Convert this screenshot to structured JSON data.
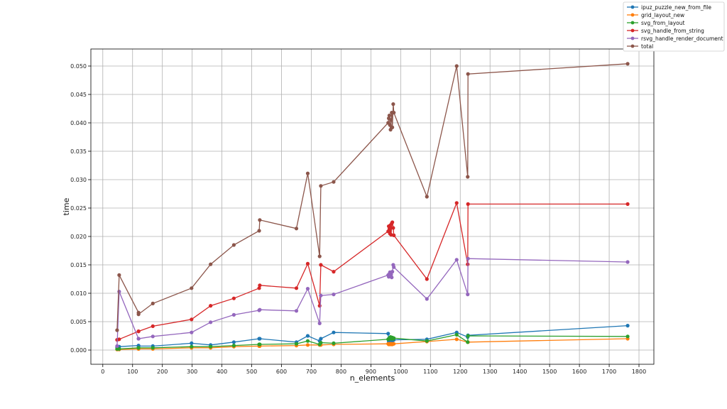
{
  "chart_data": {
    "type": "line",
    "xlabel": "n_elements",
    "ylabel": "time",
    "xlim": [
      -40,
      1850
    ],
    "ylim": [
      -0.0025,
      0.053
    ],
    "x_ticks": [
      0,
      100,
      200,
      300,
      400,
      500,
      600,
      700,
      800,
      900,
      1000,
      1100,
      1200,
      1300,
      1400,
      1500,
      1600,
      1700,
      1800
    ],
    "y_ticks": [
      0.0,
      0.005,
      0.01,
      0.015,
      0.02,
      0.025,
      0.03,
      0.035,
      0.04,
      0.045,
      0.05
    ],
    "y_tick_labels": [
      "0.000",
      "0.005",
      "0.010",
      "0.015",
      "0.020",
      "0.025",
      "0.030",
      "0.035",
      "0.040",
      "0.045",
      "0.050"
    ],
    "grid": true,
    "legend_position": "top-right (outside plot)",
    "x": [
      48,
      55,
      120,
      120,
      168,
      298,
      362,
      440,
      525,
      527,
      650,
      688,
      728,
      732,
      775,
      958,
      960,
      962,
      964,
      966,
      968,
      970,
      972,
      975,
      977,
      1088,
      1188,
      1225,
      1226,
      1762
    ],
    "series": [
      {
        "name": "ipuz_puzzle_new_from_file",
        "color": "#1f77b4",
        "values": [
          0.0005,
          0.0006,
          0.0008,
          0.0007,
          0.0007,
          0.0012,
          0.0009,
          0.0014,
          0.002,
          0.002,
          0.0014,
          0.0025,
          0.0016,
          0.002,
          0.0031,
          0.0029,
          0.0015,
          0.0016,
          0.0018,
          0.0019,
          0.0017,
          0.0018,
          0.0016,
          0.0018,
          0.0018,
          0.0019,
          0.0031,
          0.0023,
          0.0026,
          0.0043
        ]
      },
      {
        "name": "grid_layout_new",
        "color": "#ff7f0e",
        "values": [
          0.0001,
          0.0001,
          0.0002,
          0.0002,
          0.0002,
          0.0004,
          0.0004,
          0.0006,
          0.0007,
          0.0007,
          0.0008,
          0.0009,
          0.0009,
          0.0009,
          0.001,
          0.0011,
          0.001,
          0.001,
          0.0011,
          0.0011,
          0.001,
          0.0011,
          0.001,
          0.0011,
          0.0011,
          0.0015,
          0.0019,
          0.0014,
          0.0014,
          0.002
        ]
      },
      {
        "name": "svg_from_layout",
        "color": "#2ca02c",
        "values": [
          0.0002,
          0.0002,
          0.0004,
          0.0004,
          0.0004,
          0.0006,
          0.0006,
          0.0008,
          0.001,
          0.001,
          0.0011,
          0.0016,
          0.001,
          0.0013,
          0.0012,
          0.0019,
          0.002,
          0.0021,
          0.0022,
          0.0023,
          0.002,
          0.0021,
          0.0022,
          0.002,
          0.0021,
          0.0016,
          0.0027,
          0.0014,
          0.0025,
          0.0024
        ]
      },
      {
        "name": "svg_handle_from_string",
        "color": "#d62728",
        "values": [
          0.0018,
          0.0019,
          0.0033,
          0.0033,
          0.0042,
          0.0054,
          0.0078,
          0.0091,
          0.0109,
          0.0114,
          0.0109,
          0.0152,
          0.0078,
          0.015,
          0.0138,
          0.0209,
          0.0218,
          0.0213,
          0.0205,
          0.022,
          0.0203,
          0.0223,
          0.0225,
          0.0215,
          0.0202,
          0.0125,
          0.0259,
          0.0151,
          0.0257,
          0.0257
        ]
      },
      {
        "name": "rsvg_handle_render_document",
        "color": "#9467bd",
        "values": [
          0.0007,
          0.0103,
          0.002,
          0.002,
          0.0024,
          0.0031,
          0.0049,
          0.0062,
          0.007,
          0.0071,
          0.0069,
          0.0108,
          0.0047,
          0.0096,
          0.0098,
          0.0132,
          0.0129,
          0.0134,
          0.0137,
          0.013,
          0.0133,
          0.0128,
          0.0138,
          0.015,
          0.0146,
          0.009,
          0.0159,
          0.0098,
          0.0161,
          0.0155
        ]
      },
      {
        "name": "total",
        "color": "#8c564b",
        "values": [
          0.0035,
          0.0132,
          0.0066,
          0.0063,
          0.0082,
          0.0109,
          0.0151,
          0.0185,
          0.021,
          0.0229,
          0.0214,
          0.0311,
          0.0165,
          0.0289,
          0.0296,
          0.04,
          0.0408,
          0.0413,
          0.0396,
          0.0388,
          0.0405,
          0.0418,
          0.0392,
          0.0433,
          0.0418,
          0.027,
          0.05,
          0.0305,
          0.0486,
          0.0504
        ]
      }
    ]
  }
}
